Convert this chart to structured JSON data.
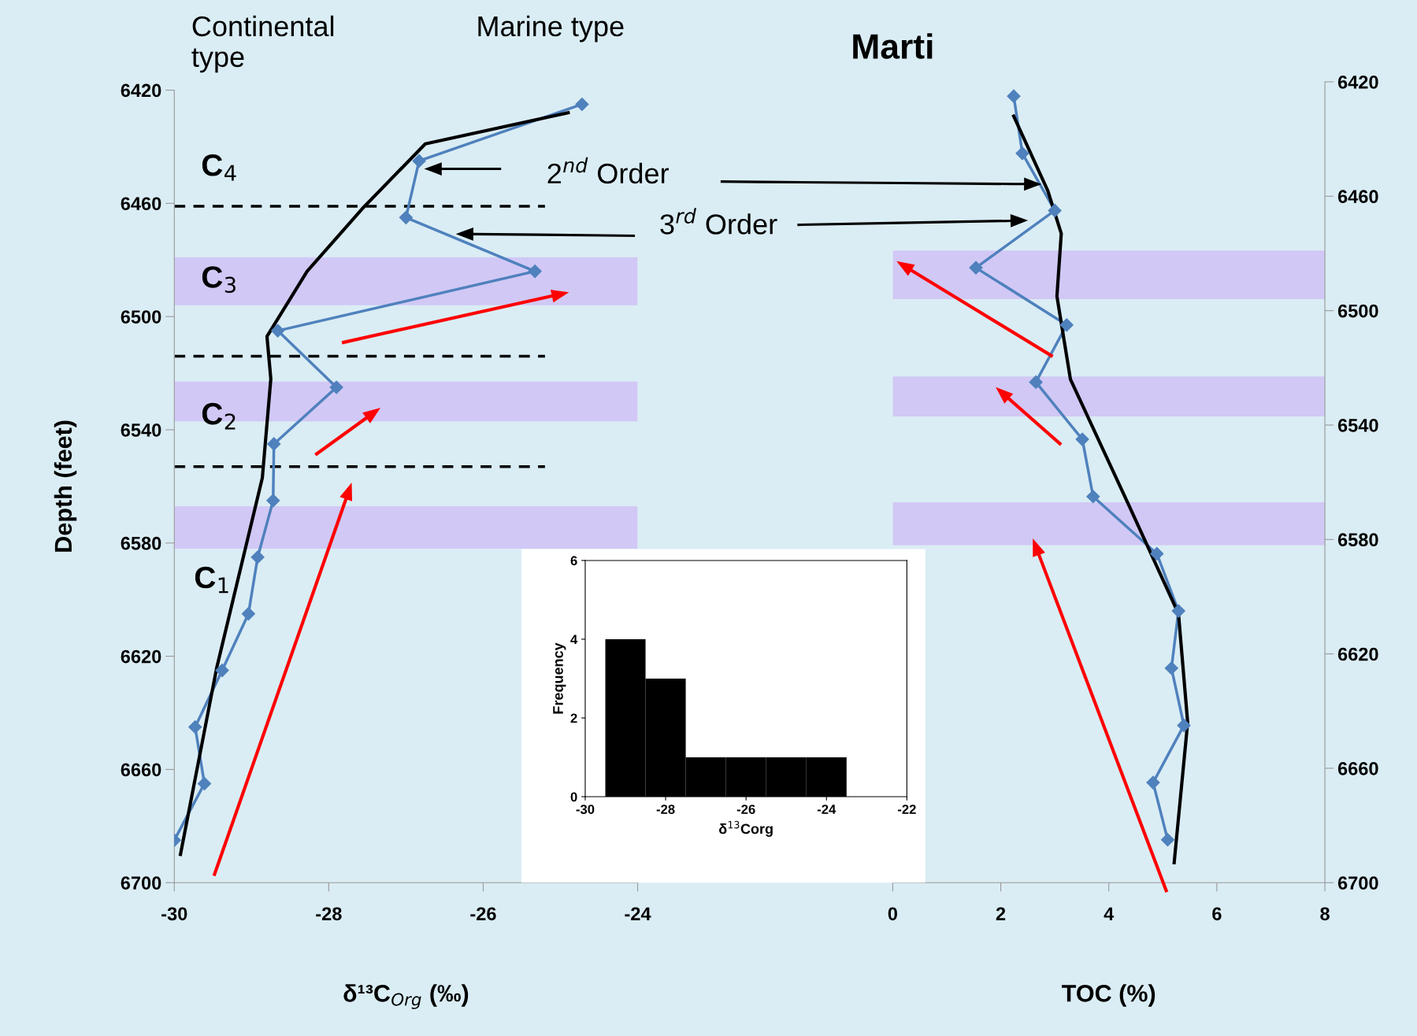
{
  "chart_data": [
    {
      "type": "line",
      "xlabel": "δ¹³C$_{Org}$ (‰)",
      "ylabel": "Depth (feet)",
      "xlim": [
        -30,
        -24
      ],
      "xticks": [
        -30,
        -28,
        -26,
        -24
      ],
      "ylim": [
        6700,
        6420
      ],
      "yticks": [
        6420,
        6460,
        6500,
        6540,
        6580,
        6620,
        6660,
        6700
      ],
      "grid": false,
      "tick_labels": "xy",
      "series": [
        {
          "color": "#4f81bd",
          "marker": "diamond",
          "x": [
            -24.72,
            -26.83,
            -27.0,
            -25.33,
            -28.66,
            -27.9,
            -28.71,
            -28.72,
            -28.92,
            -29.04,
            -29.38,
            -29.73,
            -29.61,
            -30.0
          ],
          "values": [
            6425,
            6445,
            6465,
            6484,
            6505,
            6525,
            6545,
            6565,
            6585,
            6605,
            6625,
            6645,
            6665,
            6685
          ]
        },
        {
          "color": "#000000",
          "marker": "none",
          "x": [
            -24.9,
            -26.75,
            -27.57,
            -28.28,
            -28.8,
            -28.75,
            -28.86,
            -29.45,
            -29.92
          ],
          "values": [
            6428,
            6439,
            6462,
            6484,
            6507,
            6522,
            6557,
            6624,
            6690
          ]
        }
      ],
      "ref_lines": [
        {
          "axis": "y",
          "value": 6461,
          "color": "#000000",
          "line_style": "dashed"
        },
        {
          "axis": "y",
          "value": 6514,
          "color": "#000000",
          "line_style": "dashed"
        },
        {
          "axis": "y",
          "value": 6553,
          "color": "#000000",
          "line_style": "dashed"
        }
      ],
      "bands": [
        {
          "axis": "y",
          "from": 6479,
          "to": 6496,
          "color": "#d1c8f5"
        },
        {
          "axis": "y",
          "from": 6523,
          "to": 6537,
          "color": "#d1c8f5"
        },
        {
          "axis": "y",
          "from": 6567,
          "to": 6582,
          "color": "#d1c8f5"
        }
      ],
      "annotations": [
        "C$_{4}$",
        "C$_{3}$",
        "C$_{2}$",
        "C$_{1}$",
        "Continental\ntype",
        "Marine type",
        "2$^{nd}$ Order",
        "3$^{rd}$ Order"
      ]
    },
    {
      "type": "line",
      "title": "Marti",
      "xlabel": "TOC (%)",
      "xlim": [
        0,
        8
      ],
      "xticks": [
        0,
        2,
        4,
        6,
        8
      ],
      "ylim": [
        6700,
        6420
      ],
      "yticks": [
        6420,
        6460,
        6500,
        6540,
        6580,
        6620,
        6660,
        6700
      ],
      "grid": false,
      "series": [
        {
          "color": "#4f81bd",
          "marker": "diamond",
          "x": [
            2.24,
            2.4,
            3.0,
            1.54,
            3.22,
            2.65,
            3.51,
            3.71,
            4.89,
            5.29,
            5.16,
            5.39,
            4.82,
            5.09
          ],
          "values": [
            6425,
            6445,
            6465,
            6485,
            6505,
            6525,
            6545,
            6565,
            6585,
            6605,
            6625,
            6645,
            6665,
            6685
          ]
        },
        {
          "color": "#000000",
          "marker": "none",
          "x": [
            2.24,
            2.87,
            3.12,
            3.04,
            3.29,
            4.37,
            5.29,
            5.46,
            5.21
          ],
          "values": [
            6432,
            6458,
            6473,
            6495,
            6524,
            6568,
            6606,
            6644,
            6693
          ]
        }
      ],
      "bands": [
        {
          "axis": "y",
          "from": 6479,
          "to": 6496,
          "color": "#d1c8f5"
        },
        {
          "axis": "y",
          "from": 6523,
          "to": 6537,
          "color": "#d1c8f5"
        },
        {
          "axis": "y",
          "from": 6567,
          "to": 6582,
          "color": "#d1c8f5"
        }
      ]
    },
    {
      "type": "histogram",
      "xlabel": "δ$^{13}$Corg",
      "ylabel": "Frequency",
      "bins": [
        -29.5,
        -28.5,
        -27.5,
        -26.5,
        -25.5,
        -24.5,
        -23.5
      ],
      "values": [
        4,
        3,
        1,
        1,
        1,
        1
      ],
      "color": "#000000",
      "xlim": [
        -30,
        -22
      ],
      "xticks": [
        -30,
        -28,
        -26,
        -24,
        -22
      ],
      "ylim": [
        0,
        6
      ],
      "yticks": [
        0,
        2,
        4,
        6
      ],
      "grid": false
    }
  ]
}
